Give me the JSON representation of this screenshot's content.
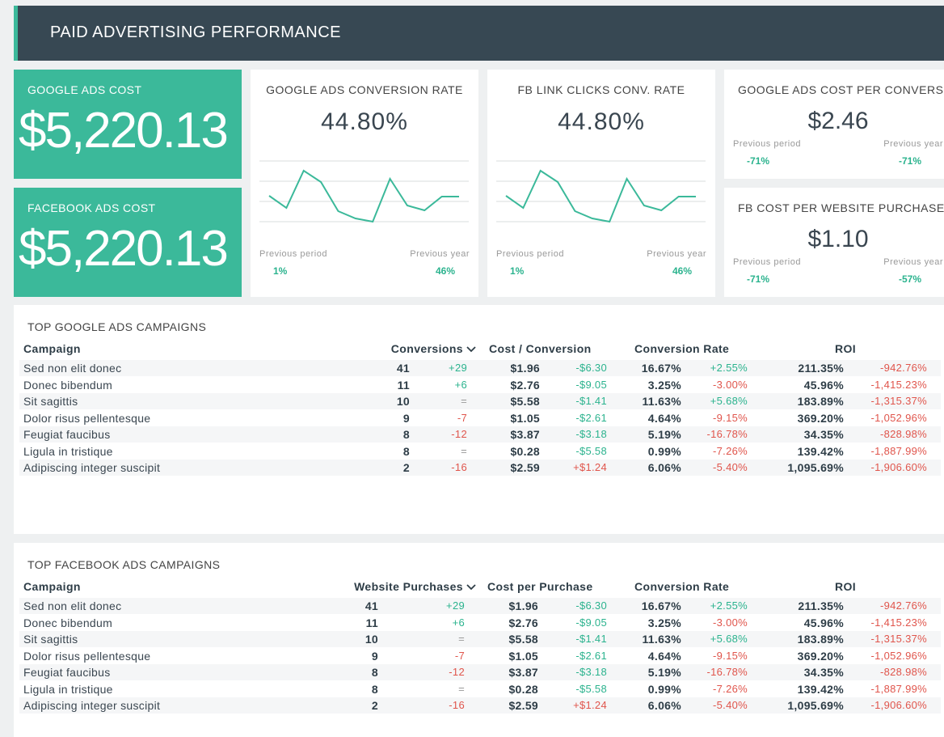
{
  "header": {
    "title": "PAID ADVERTISING PERFORMANCE"
  },
  "kpis": [
    {
      "label": "GOOGLE ADS COST",
      "value": "$5,220.13"
    },
    {
      "label": "FACEBOOK ADS COST",
      "value": "$5,220.13"
    }
  ],
  "rate_cards": [
    {
      "title": "GOOGLE ADS CONVERSION RATE",
      "value": "44.80%",
      "sparkline": {
        "values": [
          1.28,
          0.68,
          2.52,
          1.96,
          0.52,
          0.16,
          0,
          2.12,
          0.8,
          0.56,
          1.24,
          1.24
        ],
        "ylim": [
          0,
          3
        ],
        "yticks": [
          0,
          1,
          2,
          3
        ]
      },
      "previous_period_label": "Previous period",
      "previous_period": "1%",
      "previous_year_label": "Previous year",
      "previous_year": "46%"
    },
    {
      "title": "FB LINK CLICKS CONV. RATE",
      "value": "44.80%",
      "sparkline": {
        "values": [
          1.28,
          0.68,
          2.52,
          1.96,
          0.52,
          0.16,
          0,
          2.12,
          0.8,
          0.56,
          1.24,
          1.24
        ],
        "ylim": [
          0,
          3
        ],
        "yticks": [
          0,
          1,
          2,
          3
        ]
      },
      "previous_period_label": "Previous period",
      "previous_period": "1%",
      "previous_year_label": "Previous year",
      "previous_year": "46%"
    }
  ],
  "cost_cards": [
    {
      "title": "GOOGLE ADS COST PER CONVERS",
      "value": "$2.46",
      "previous_period_label": "Previous period",
      "previous_period": "-71%",
      "previous_year_label": "Previous year",
      "previous_year": "-71%"
    },
    {
      "title": "FB COST PER WEBSITE PURCHASE",
      "value": "$1.10",
      "previous_period_label": "Previous period",
      "previous_period": "-71%",
      "previous_year_label": "Previous year",
      "previous_year": "-57%"
    }
  ],
  "tables": [
    {
      "title": "TOP GOOGLE ADS CAMPAIGNS",
      "columns": [
        "Campaign",
        "Conversions",
        "Cost / Conversion",
        "Conversion Rate",
        "ROI"
      ],
      "rows": [
        [
          "Sed non elit donec",
          "41",
          "+29",
          "$1.96",
          "-$6.30",
          "16.67%",
          "+2.55%",
          "211.35%",
          "-942.76%"
        ],
        [
          "Donec bibendum",
          "11",
          "+6",
          "$2.76",
          "-$9.05",
          "3.25%",
          "-3.00%",
          "45.96%",
          "-1,415.23%"
        ],
        [
          "Sit sagittis",
          "10",
          "=",
          "$5.58",
          "-$1.41",
          "11.63%",
          "+5.68%",
          "183.89%",
          "-1,315.37%"
        ],
        [
          "Dolor risus pellentesque",
          "9",
          "-7",
          "$1.05",
          "-$2.61",
          "4.64%",
          "-9.15%",
          "369.20%",
          "-1,052.96%"
        ],
        [
          "Feugiat faucibus",
          "8",
          "-12",
          "$3.87",
          "-$3.18",
          "5.19%",
          "-16.78%",
          "34.35%",
          "-828.98%"
        ],
        [
          "Ligula in tristique",
          "8",
          "=",
          "$0.28",
          "-$5.58",
          "0.99%",
          "-7.26%",
          "139.42%",
          "-1,887.99%"
        ],
        [
          "Adipiscing integer suscipit",
          "2",
          "-16",
          "$2.59",
          "+$1.24",
          "6.06%",
          "-5.40%",
          "1,095.69%",
          "-1,906.60%"
        ]
      ]
    },
    {
      "title": "TOP FACEBOOK ADS CAMPAIGNS",
      "columns": [
        "Campaign",
        "Website Purchases",
        "Cost per Purchase",
        "Conversion Rate",
        "ROI"
      ],
      "rows": [
        [
          "Sed non elit donec",
          "41",
          "+29",
          "$1.96",
          "-$6.30",
          "16.67%",
          "+2.55%",
          "211.35%",
          "-942.76%"
        ],
        [
          "Donec bibendum",
          "11",
          "+6",
          "$2.76",
          "-$9.05",
          "3.25%",
          "-3.00%",
          "45.96%",
          "-1,415.23%"
        ],
        [
          "Sit sagittis",
          "10",
          "=",
          "$5.58",
          "-$1.41",
          "11.63%",
          "+5.68%",
          "183.89%",
          "-1,315.37%"
        ],
        [
          "Dolor risus pellentesque",
          "9",
          "-7",
          "$1.05",
          "-$2.61",
          "4.64%",
          "-9.15%",
          "369.20%",
          "-1,052.96%"
        ],
        [
          "Feugiat faucibus",
          "8",
          "-12",
          "$3.87",
          "-$3.18",
          "5.19%",
          "-16.78%",
          "34.35%",
          "-828.98%"
        ],
        [
          "Ligula in tristique",
          "8",
          "=",
          "$0.28",
          "-$5.58",
          "0.99%",
          "-7.26%",
          "139.42%",
          "-1,887.99%"
        ],
        [
          "Adipiscing integer suscipit",
          "2",
          "-16",
          "$2.59",
          "+$1.24",
          "6.06%",
          "-5.40%",
          "1,095.69%",
          "-1,906.60%"
        ]
      ]
    }
  ]
}
